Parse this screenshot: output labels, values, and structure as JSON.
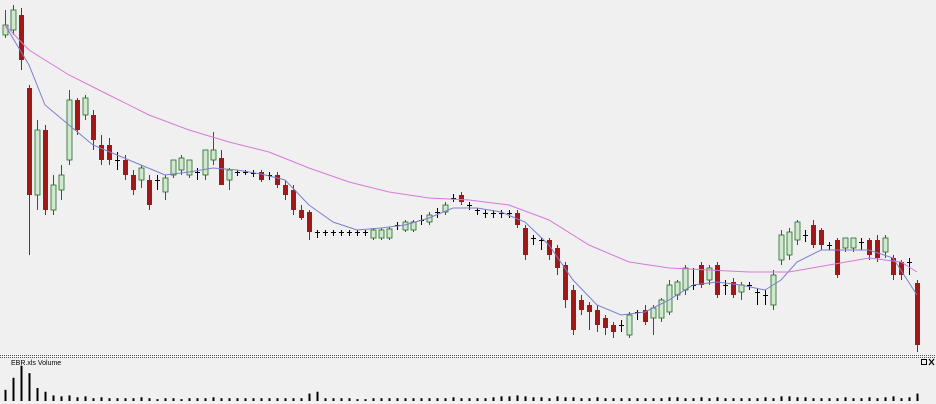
{
  "chart_data": {
    "type": "candlestick",
    "up_color": "#1e6b1e",
    "up_fill": "#cfe8cf",
    "down_color": "#a01818",
    "ylim": [
      4,
      360
    ],
    "open": [
      325,
      330,
      345,
      272,
      165,
      230,
      150,
      170,
      200,
      260,
      245,
      245,
      215,
      215,
      200,
      200,
      185,
      180,
      180,
      180,
      168,
      185,
      190,
      185,
      188,
      185,
      200,
      202,
      180,
      188,
      188,
      187,
      188,
      185,
      185,
      175,
      170,
      150,
      148,
      128,
      128,
      128,
      128,
      128,
      128,
      128,
      122,
      122,
      122,
      135,
      130,
      130,
      140,
      138,
      148,
      148,
      162,
      165,
      155,
      150,
      147,
      147,
      147,
      147,
      147,
      132,
      122,
      120,
      120,
      112,
      95,
      70,
      60,
      55,
      50,
      42,
      35,
      35,
      25,
      48,
      50,
      42,
      42,
      48,
      65,
      70,
      75,
      95,
      80,
      95,
      75,
      78,
      68,
      75,
      68,
      65,
      55,
      100,
      105,
      120,
      125,
      135,
      130,
      115,
      120,
      112,
      112,
      118,
      120,
      120,
      108,
      102,
      98,
      98,
      77
    ],
    "high": [
      350,
      355,
      352,
      275,
      240,
      235,
      185,
      195,
      270,
      262,
      265,
      250,
      225,
      222,
      208,
      205,
      190,
      195,
      185,
      185,
      185,
      200,
      205,
      200,
      192,
      210,
      228,
      210,
      192,
      190,
      190,
      190,
      190,
      188,
      188,
      180,
      175,
      155,
      150,
      130,
      130,
      130,
      130,
      130,
      130,
      130,
      132,
      132,
      133,
      138,
      140,
      140,
      145,
      148,
      152,
      158,
      166,
      168,
      158,
      152,
      150,
      150,
      150,
      150,
      150,
      135,
      125,
      122,
      122,
      115,
      98,
      75,
      65,
      58,
      55,
      45,
      38,
      40,
      48,
      50,
      55,
      55,
      62,
      80,
      80,
      95,
      92,
      98,
      95,
      98,
      80,
      82,
      78,
      78,
      72,
      70,
      90,
      130,
      132,
      140,
      130,
      140,
      132,
      118,
      122,
      122,
      122,
      122,
      122,
      125,
      125,
      105,
      100,
      102,
      80
    ],
    "low": [
      322,
      325,
      290,
      105,
      150,
      145,
      145,
      160,
      195,
      225,
      240,
      210,
      195,
      195,
      190,
      180,
      165,
      172,
      150,
      170,
      160,
      182,
      185,
      182,
      180,
      180,
      195,
      175,
      170,
      184,
      185,
      183,
      178,
      180,
      172,
      160,
      145,
      140,
      120,
      122,
      124,
      124,
      124,
      124,
      124,
      124,
      120,
      120,
      120,
      130,
      128,
      128,
      135,
      135,
      142,
      145,
      158,
      155,
      150,
      145,
      142,
      142,
      142,
      142,
      132,
      100,
      115,
      110,
      100,
      85,
      52,
      25,
      45,
      30,
      28,
      25,
      22,
      28,
      22,
      40,
      35,
      25,
      38,
      45,
      60,
      65,
      70,
      72,
      75,
      62,
      65,
      62,
      60,
      70,
      55,
      55,
      50,
      95,
      100,
      115,
      118,
      112,
      110,
      110,
      82,
      108,
      108,
      110,
      100,
      98,
      102,
      80,
      80,
      85,
      8
    ],
    "close": [
      335,
      350,
      300,
      165,
      230,
      150,
      175,
      185,
      260,
      230,
      262,
      220,
      200,
      200,
      200,
      185,
      170,
      192,
      155,
      180,
      182,
      200,
      202,
      200,
      188,
      210,
      210,
      175,
      190,
      188,
      188,
      187,
      180,
      185,
      175,
      165,
      150,
      142,
      128,
      128,
      128,
      128,
      128,
      128,
      128,
      128,
      130,
      130,
      131,
      135,
      138,
      138,
      140,
      145,
      148,
      155,
      162,
      158,
      155,
      150,
      147,
      147,
      147,
      147,
      135,
      105,
      122,
      120,
      105,
      92,
      60,
      30,
      50,
      48,
      35,
      32,
      28,
      35,
      45,
      48,
      38,
      52,
      60,
      75,
      78,
      92,
      75,
      75,
      92,
      65,
      75,
      65,
      75,
      75,
      68,
      65,
      85,
      125,
      128,
      138,
      125,
      115,
      115,
      115,
      85,
      122,
      122,
      118,
      105,
      102,
      122,
      85,
      85,
      98,
      15
    ],
    "lines": [
      {
        "color": "#7b7fd0",
        "x": [
          0,
          3,
          5,
          8,
          11,
          14,
          17,
          20,
          23,
          26,
          29,
          32,
          35,
          38,
          41,
          44,
          47,
          50,
          53,
          56,
          59,
          62,
          65,
          68,
          71,
          74,
          77,
          80,
          83,
          86,
          89,
          92,
          95,
          97,
          99,
          102,
          105,
          108,
          111,
          114
        ],
        "values": [
          335,
          295,
          255,
          235,
          215,
          205,
          195,
          185,
          188,
          192,
          190,
          186,
          180,
          155,
          138,
          130,
          132,
          135,
          142,
          152,
          152,
          148,
          138,
          115,
          80,
          55,
          45,
          48,
          60,
          75,
          78,
          75,
          70,
          80,
          98,
          110,
          110,
          110,
          102,
          65
        ]
      },
      {
        "color": "#d878d8",
        "x": [
          0,
          3,
          8,
          13,
          18,
          23,
          28,
          33,
          38,
          43,
          48,
          53,
          58,
          63,
          68,
          73,
          78,
          83,
          88,
          93,
          98,
          103,
          108,
          112,
          114
        ],
        "values": [
          335,
          310,
          285,
          265,
          245,
          230,
          218,
          208,
          192,
          178,
          168,
          162,
          160,
          155,
          140,
          115,
          98,
          92,
          90,
          88,
          88,
          95,
          102,
          98,
          88
        ]
      }
    ],
    "volume": {
      "title": "EBR.xls Volume",
      "color": "#000000",
      "ylim": [
        0,
        42
      ],
      "values": [
        12,
        25,
        38,
        30,
        14,
        10,
        6,
        5,
        6,
        4,
        5,
        3,
        4,
        3,
        3,
        3,
        3,
        4,
        3,
        2,
        3,
        3,
        2,
        3,
        3,
        3,
        4,
        3,
        3,
        3,
        3,
        3,
        3,
        3,
        3,
        3,
        3,
        3,
        8,
        10,
        3,
        3,
        3,
        3,
        2,
        2,
        3,
        3,
        3,
        3,
        3,
        3,
        3,
        3,
        3,
        3,
        4,
        3,
        3,
        3,
        3,
        4,
        5,
        5,
        6,
        5,
        4,
        4,
        3,
        5,
        4,
        4,
        3,
        3,
        4,
        3,
        3,
        3,
        3,
        3,
        3,
        3,
        3,
        4,
        4,
        3,
        3,
        4,
        3,
        4,
        3,
        3,
        3,
        3,
        3,
        4,
        3,
        5,
        5,
        4,
        4,
        3,
        3,
        3,
        3,
        4,
        3,
        3,
        4,
        3,
        4,
        5,
        3,
        4,
        8
      ]
    }
  }
}
